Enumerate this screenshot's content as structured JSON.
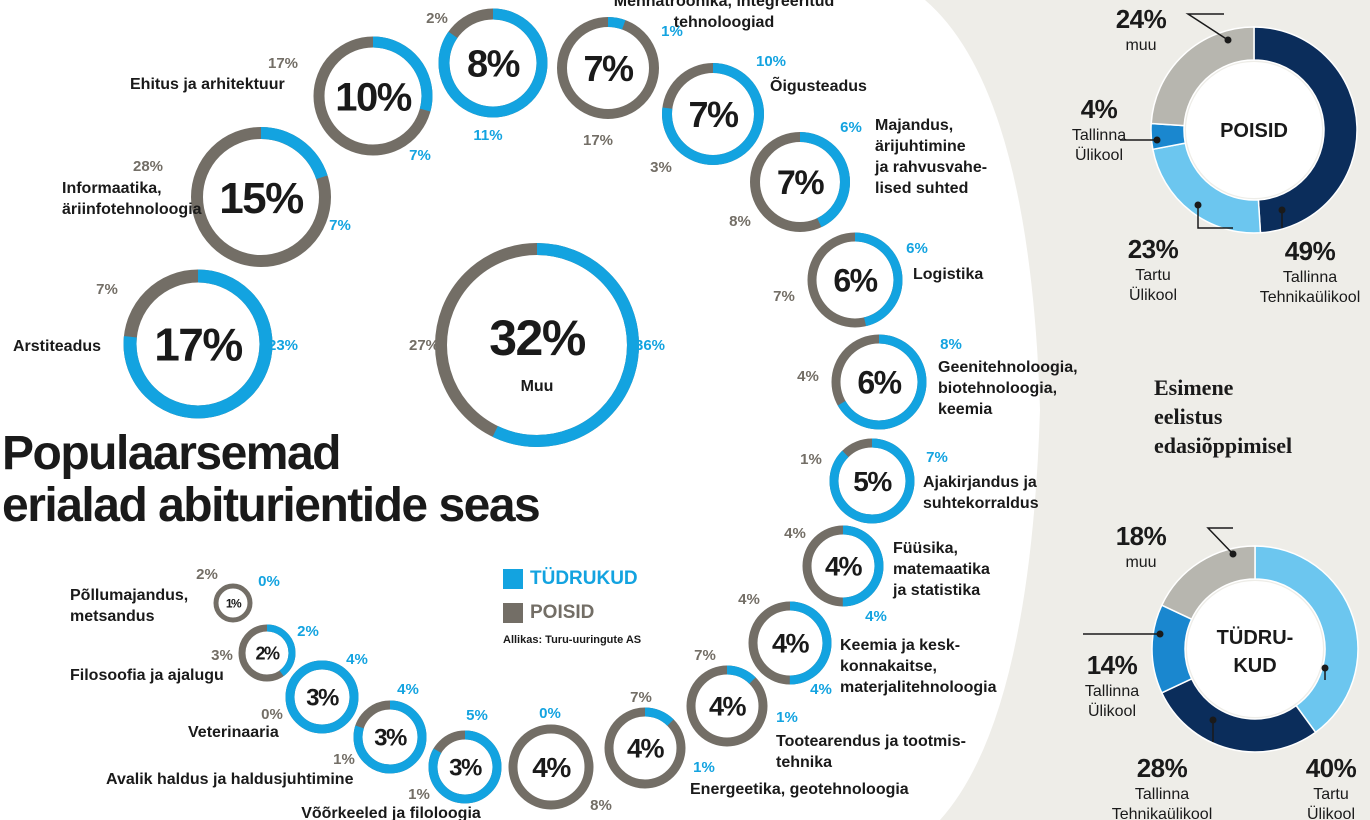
{
  "title_lines": [
    "Populaarsemad",
    "erialad abiturientide seas"
  ],
  "legend": {
    "girls": "TÜDRUKUD",
    "boys": "POISID",
    "source": "Allikas: Turu-uuringute AS"
  },
  "colors": {
    "girls": "#13a3e0",
    "boys": "#736e66",
    "text": "#1a1a1a",
    "panel_bg": "#eeede8",
    "dark_navy": "#0b2d5b",
    "mid_blue": "#1a87cf",
    "light_blue": "#6cc6ef",
    "grey": "#b7b6af"
  },
  "chart_data": [
    {
      "type": "ring-chart",
      "value_unit": "%",
      "series_names": {
        "girls": "TÜDRUKUD",
        "boys": "POISID"
      },
      "items": [
        {
          "name": "Muu",
          "total": "32%",
          "girls": "36%",
          "boys": "27%"
        },
        {
          "name": "Arstiteadus",
          "total": "17%",
          "girls": "23%",
          "boys": "7%"
        },
        {
          "name": "Informaatika,\näriinfotehnoloogia",
          "total": "15%",
          "girls": "7%",
          "boys": "28%"
        },
        {
          "name": "Ehitus ja arhitektuur",
          "total": "10%",
          "girls": "7%",
          "boys": "17%"
        },
        {
          "name": "",
          "total": "8%",
          "girls": "11%",
          "boys": "2%"
        },
        {
          "name": "Mehhatroonika, integreeritud\ntehnoloogiad",
          "total": "7%",
          "girls": "1%",
          "boys": "17%"
        },
        {
          "name": "Õigusteadus",
          "total": "7%",
          "girls": "10%",
          "boys": "3%"
        },
        {
          "name": "Majandus,\närijuhtimine\nja rahvusvahe-\nlised suhted",
          "total": "7%",
          "girls": "6%",
          "boys": "8%"
        },
        {
          "name": "Logistika",
          "total": "6%",
          "girls": "6%",
          "boys": "7%"
        },
        {
          "name": "Geenitehnoloogia,\nbiotehnoloogia,\nkeemia",
          "total": "6%",
          "girls": "8%",
          "boys": "4%"
        },
        {
          "name": "Ajakirjandus ja\nsuhtekorraldus",
          "total": "5%",
          "girls": "7%",
          "boys": "1%"
        },
        {
          "name": "Füüsika,\nmatemaatika\nja statistika",
          "total": "4%",
          "girls": "4%",
          "boys": "4%"
        },
        {
          "name": "Keemia ja kesk-\nkonnakaitse,\nmaterjalitehnoloogia",
          "total": "4%",
          "girls": "4%",
          "boys": "4%"
        },
        {
          "name": "Tootearendus ja tootmis-\ntehnika",
          "total": "4%",
          "girls": "1%",
          "boys": "7%"
        },
        {
          "name": "Energeetika, geotehnoloogia",
          "total": "4%",
          "girls": "1%",
          "boys": "7%"
        },
        {
          "name": "",
          "total": "4%",
          "girls": "0%",
          "boys": "8%"
        },
        {
          "name": "Võõrkeeled ja filoloogia",
          "total": "3%",
          "girls": "5%",
          "boys": "1%"
        },
        {
          "name": "Avalik haldus ja haldusjuhtimine",
          "total": "3%",
          "girls": "4%",
          "boys": "1%"
        },
        {
          "name": "Veterinaaria",
          "total": "3%",
          "girls": "4%",
          "boys": "0%"
        },
        {
          "name": "Filosoofia ja ajalugu",
          "total": "2%",
          "girls": "2%",
          "boys": "3%"
        },
        {
          "name": "Põllumajandus,\nmetsandus",
          "total": "1%",
          "girls": "0%",
          "boys": "2%"
        }
      ]
    },
    {
      "type": "pie",
      "title": "Esimene\neelistus\nedasiõppimisel",
      "charts": [
        {
          "center_label": "POISID",
          "slices": [
            {
              "label": "Tallinna\nTehnikaülikool",
              "pct": "49%",
              "value": 49,
              "color": "#0b2d5b"
            },
            {
              "label": "Tartu\nÜlikool",
              "pct": "23%",
              "value": 23,
              "color": "#6cc6ef"
            },
            {
              "label": "Tallinna\nÜlikool",
              "pct": "4%",
              "value": 4,
              "color": "#1a87cf"
            },
            {
              "label": "muu",
              "pct": "24%",
              "value": 24,
              "color": "#b7b6af"
            }
          ]
        },
        {
          "center_label": "TÜDRU-\nKUD",
          "slices": [
            {
              "label": "Tartu\nÜlikool",
              "pct": "40%",
              "value": 40,
              "color": "#6cc6ef"
            },
            {
              "label": "Tallinna\nTehnikaülikool",
              "pct": "28%",
              "value": 28,
              "color": "#0b2d5b"
            },
            {
              "label": "Tallinna\nÜlikool",
              "pct": "14%",
              "value": 14,
              "color": "#1a87cf"
            },
            {
              "label": "muu",
              "pct": "18%",
              "value": 18,
              "color": "#b7b6af"
            }
          ]
        }
      ]
    }
  ]
}
